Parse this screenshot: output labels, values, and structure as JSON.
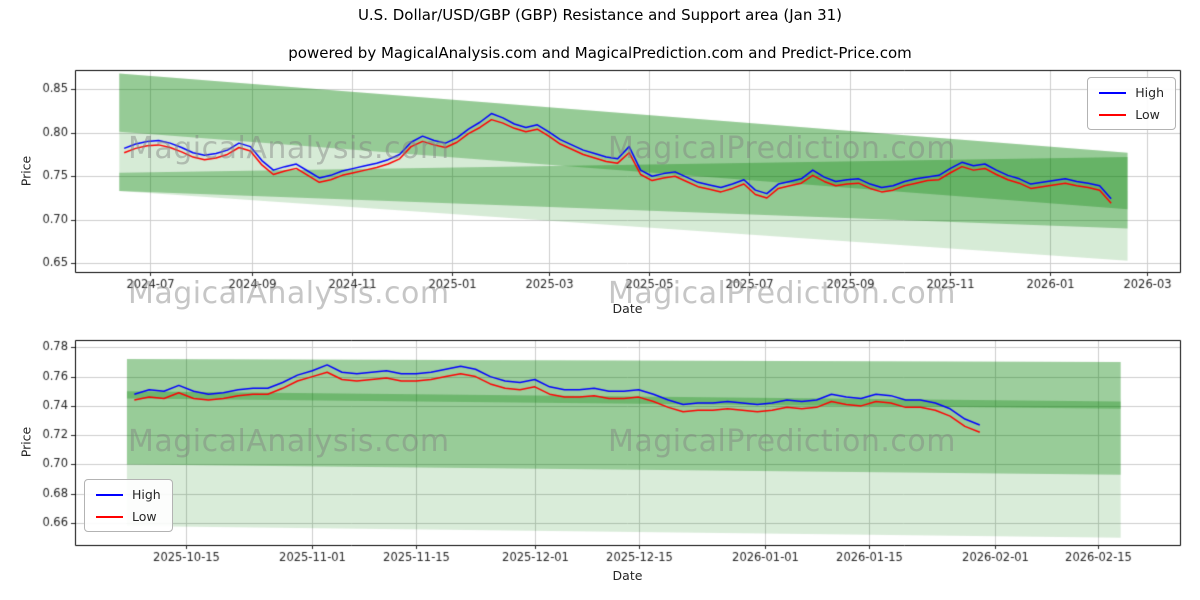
{
  "figure": {
    "title": "U.S. Dollar/USD/GBP (GBP) Resistance and Support area (Jan 31)",
    "subtitle": "powered by MagicalAnalysis.com and MagicalPrediction.com and Predict-Price.com"
  },
  "watermarks": {
    "left": "MagicalAnalysis.com",
    "right": "MagicalPrediction.com"
  },
  "colors": {
    "high": "#0000ff",
    "low": "#ff0000",
    "band": "#008000",
    "grid": "#cccccc",
    "tick": "#262626",
    "watermark": "#808080"
  },
  "chart_data": [
    {
      "type": "line",
      "title": "powered by MagicalAnalysis.com and MagicalPrediction.com and Predict-Price.com",
      "xlabel": "Date",
      "ylabel": "Price",
      "xlim": [
        "2024-05-16",
        "2026-03-21"
      ],
      "ylim": [
        0.64,
        0.872
      ],
      "grid": true,
      "legend_position": "upper right",
      "yticks": [
        0.65,
        0.7,
        0.75,
        0.8,
        0.85
      ],
      "xticks": [
        {
          "pos": "2024-07-01",
          "label": "2024-07"
        },
        {
          "pos": "2024-09-01",
          "label": "2024-09"
        },
        {
          "pos": "2024-11-01",
          "label": "2024-11"
        },
        {
          "pos": "2025-01-01",
          "label": "2025-01"
        },
        {
          "pos": "2025-03-01",
          "label": "2025-03"
        },
        {
          "pos": "2025-05-01",
          "label": "2025-05"
        },
        {
          "pos": "2025-07-01",
          "label": "2025-07"
        },
        {
          "pos": "2025-09-01",
          "label": "2025-09"
        },
        {
          "pos": "2025-11-01",
          "label": "2025-11"
        },
        {
          "pos": "2026-01-01",
          "label": "2026-01"
        },
        {
          "pos": "2026-03-01",
          "label": "2026-03"
        }
      ],
      "x_start": "2024-06-15",
      "x_step_days": 7,
      "series": [
        {
          "name": "High",
          "color_key": "high",
          "values": [
            0.782,
            0.787,
            0.79,
            0.791,
            0.788,
            0.783,
            0.777,
            0.774,
            0.776,
            0.78,
            0.788,
            0.784,
            0.768,
            0.757,
            0.761,
            0.764,
            0.756,
            0.748,
            0.751,
            0.756,
            0.759,
            0.762,
            0.765,
            0.769,
            0.775,
            0.789,
            0.796,
            0.791,
            0.788,
            0.794,
            0.804,
            0.812,
            0.822,
            0.817,
            0.81,
            0.806,
            0.809,
            0.801,
            0.792,
            0.786,
            0.78,
            0.776,
            0.772,
            0.77,
            0.784,
            0.757,
            0.75,
            0.753,
            0.755,
            0.749,
            0.743,
            0.74,
            0.737,
            0.741,
            0.746,
            0.734,
            0.73,
            0.741,
            0.744,
            0.747,
            0.757,
            0.749,
            0.744,
            0.746,
            0.747,
            0.741,
            0.737,
            0.739,
            0.744,
            0.747,
            0.749,
            0.751,
            0.759,
            0.766,
            0.762,
            0.764,
            0.757,
            0.751,
            0.747,
            0.741,
            0.743,
            0.745,
            0.747,
            0.744,
            0.742,
            0.739,
            0.724
          ]
        },
        {
          "name": "Low",
          "color_key": "low",
          "values": [
            0.777,
            0.782,
            0.785,
            0.786,
            0.783,
            0.778,
            0.772,
            0.769,
            0.771,
            0.775,
            0.783,
            0.779,
            0.763,
            0.752,
            0.756,
            0.759,
            0.751,
            0.743,
            0.746,
            0.751,
            0.754,
            0.757,
            0.76,
            0.764,
            0.77,
            0.784,
            0.79,
            0.786,
            0.783,
            0.789,
            0.799,
            0.806,
            0.815,
            0.811,
            0.805,
            0.801,
            0.804,
            0.796,
            0.787,
            0.781,
            0.775,
            0.771,
            0.767,
            0.765,
            0.777,
            0.752,
            0.745,
            0.748,
            0.75,
            0.744,
            0.738,
            0.735,
            0.732,
            0.736,
            0.741,
            0.729,
            0.725,
            0.736,
            0.739,
            0.742,
            0.751,
            0.744,
            0.739,
            0.741,
            0.742,
            0.736,
            0.732,
            0.734,
            0.739,
            0.742,
            0.745,
            0.746,
            0.754,
            0.761,
            0.757,
            0.759,
            0.752,
            0.746,
            0.742,
            0.736,
            0.738,
            0.74,
            0.742,
            0.739,
            0.737,
            0.734,
            0.719
          ]
        }
      ],
      "bands": [
        {
          "x0": "2024-06-12",
          "x1": "2026-02-17",
          "top": [
            0.868,
            0.777
          ],
          "bottom": [
            0.801,
            0.712
          ],
          "alpha": 0.3
        },
        {
          "x0": "2024-06-12",
          "x1": "2026-02-17",
          "top": [
            0.868,
            0.777
          ],
          "bottom": [
            0.733,
            0.653
          ],
          "alpha": 0.16
        },
        {
          "x0": "2024-06-12",
          "x1": "2026-02-17",
          "top": [
            0.754,
            0.772
          ],
          "bottom": [
            0.733,
            0.69
          ],
          "alpha": 0.32
        }
      ]
    },
    {
      "type": "line",
      "xlabel": "Date",
      "ylabel": "Price",
      "xlim": [
        "2025-09-30",
        "2026-02-26"
      ],
      "ylim": [
        0.645,
        0.785
      ],
      "grid": true,
      "legend_position": "lower left",
      "yticks": [
        0.66,
        0.68,
        0.7,
        0.72,
        0.74,
        0.76,
        0.78
      ],
      "xticks": [
        {
          "pos": "2025-10-15",
          "label": "2025-10-15"
        },
        {
          "pos": "2025-11-01",
          "label": "2025-11-01"
        },
        {
          "pos": "2025-11-15",
          "label": "2025-11-15"
        },
        {
          "pos": "2025-12-01",
          "label": "2025-12-01"
        },
        {
          "pos": "2025-12-15",
          "label": "2025-12-15"
        },
        {
          "pos": "2026-01-01",
          "label": "2026-01-01"
        },
        {
          "pos": "2026-01-15",
          "label": "2026-01-15"
        },
        {
          "pos": "2026-02-01",
          "label": "2026-02-01"
        },
        {
          "pos": "2026-02-15",
          "label": "2026-02-15"
        }
      ],
      "x_start": "2025-10-08",
      "x_step_days": 2,
      "series": [
        {
          "name": "High",
          "color_key": "high",
          "values": [
            0.748,
            0.751,
            0.75,
            0.754,
            0.75,
            0.748,
            0.749,
            0.751,
            0.752,
            0.752,
            0.756,
            0.761,
            0.764,
            0.768,
            0.763,
            0.762,
            0.763,
            0.764,
            0.762,
            0.762,
            0.763,
            0.765,
            0.767,
            0.765,
            0.76,
            0.757,
            0.756,
            0.758,
            0.753,
            0.751,
            0.751,
            0.752,
            0.75,
            0.75,
            0.751,
            0.748,
            0.744,
            0.741,
            0.742,
            0.742,
            0.743,
            0.742,
            0.741,
            0.742,
            0.744,
            0.743,
            0.744,
            0.748,
            0.746,
            0.745,
            0.748,
            0.747,
            0.744,
            0.744,
            0.742,
            0.738,
            0.731,
            0.727
          ]
        },
        {
          "name": "Low",
          "color_key": "low",
          "values": [
            0.744,
            0.746,
            0.745,
            0.749,
            0.745,
            0.744,
            0.745,
            0.747,
            0.748,
            0.748,
            0.752,
            0.757,
            0.76,
            0.763,
            0.758,
            0.757,
            0.758,
            0.759,
            0.757,
            0.757,
            0.758,
            0.76,
            0.762,
            0.76,
            0.755,
            0.752,
            0.751,
            0.753,
            0.748,
            0.746,
            0.746,
            0.747,
            0.745,
            0.745,
            0.746,
            0.743,
            0.739,
            0.736,
            0.737,
            0.737,
            0.738,
            0.737,
            0.736,
            0.737,
            0.739,
            0.738,
            0.739,
            0.743,
            0.741,
            0.74,
            0.743,
            0.742,
            0.739,
            0.739,
            0.737,
            0.733,
            0.726,
            0.722
          ]
        }
      ],
      "bands": [
        {
          "x0": "2025-10-07",
          "x1": "2026-02-18",
          "top": [
            0.772,
            0.77
          ],
          "bottom": [
            0.658,
            0.65
          ],
          "alpha": 0.15
        },
        {
          "x0": "2025-10-07",
          "x1": "2026-02-18",
          "top": [
            0.772,
            0.77
          ],
          "bottom": [
            0.745,
            0.738
          ],
          "alpha": 0.28
        },
        {
          "x0": "2025-10-07",
          "x1": "2026-02-18",
          "top": [
            0.75,
            0.743
          ],
          "bottom": [
            0.7,
            0.693
          ],
          "alpha": 0.3
        }
      ]
    }
  ]
}
